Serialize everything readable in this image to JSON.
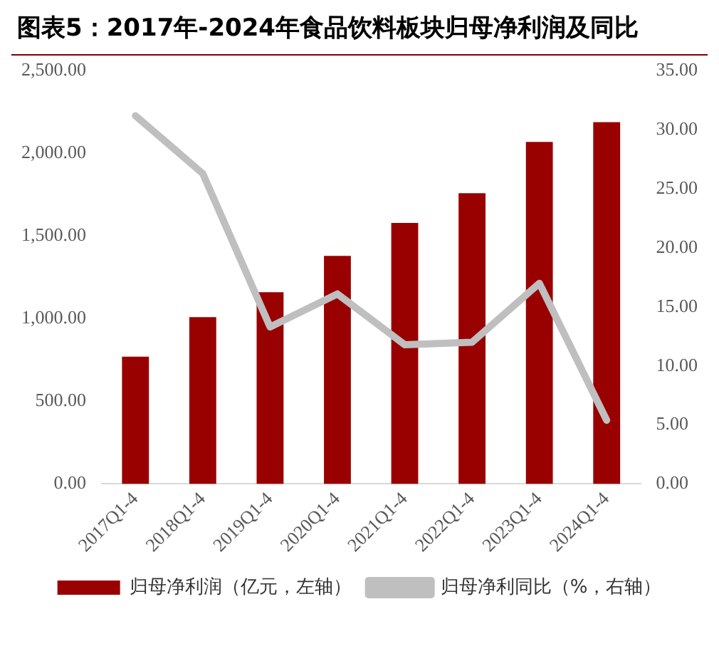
{
  "chart_data": {
    "type": "bar",
    "title": "图表5：2017年-2024年食品饮料板块归母净利润及同比",
    "categories": [
      "2017Q1-4",
      "2018Q1-4",
      "2019Q1-4",
      "2020Q1-4",
      "2021Q1-4",
      "2022Q1-4",
      "2023Q1-4",
      "2024Q1-4"
    ],
    "series": [
      {
        "name": "归母净利润（亿元，左轴）",
        "color": "#990000",
        "values": [
          770,
          1010,
          1160,
          1380,
          1580,
          1760,
          2070,
          2190
        ]
      },
      {
        "name": "归母净利同比（%，右轴）",
        "type": "line",
        "axis": "y2",
        "color": "#bfbfbf",
        "values": [
          31.2,
          26.3,
          13.3,
          16.1,
          11.8,
          12.0,
          17.0,
          5.4
        ]
      }
    ],
    "ylim": [
      0,
      2500
    ],
    "yticks": [
      {
        "value": 0,
        "label": "0.00"
      },
      {
        "value": 500,
        "label": "500.00"
      },
      {
        "value": 1000,
        "label": "1,000.00"
      },
      {
        "value": 1500,
        "label": "1,500.00"
      },
      {
        "value": 2000,
        "label": "2,000.00"
      },
      {
        "value": 2500,
        "label": "2,500.00"
      }
    ],
    "y2lim": [
      0,
      35
    ],
    "y2ticks": [
      {
        "value": 0,
        "label": "0.00"
      },
      {
        "value": 5,
        "label": "5.00"
      },
      {
        "value": 10,
        "label": "10.00"
      },
      {
        "value": 15,
        "label": "15.00"
      },
      {
        "value": 20,
        "label": "20.00"
      },
      {
        "value": 25,
        "label": "25.00"
      },
      {
        "value": 30,
        "label": "30.00"
      },
      {
        "value": 35,
        "label": "35.00"
      }
    ],
    "grid": false,
    "legend": "bottom",
    "marker": "none"
  }
}
